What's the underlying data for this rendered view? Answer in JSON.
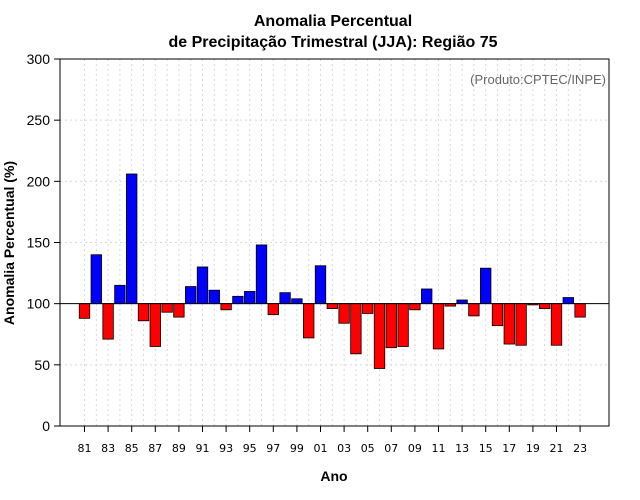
{
  "chart_data": {
    "type": "bar",
    "title_line1": "Anomalia Percentual",
    "title_line2": "de Precipitação Trimestral (JJA): Região 75",
    "xlabel": "Ano",
    "ylabel": "Anomalia Percentual (%)",
    "credit": "(Produto:CPTEC/INPE)",
    "ylim": [
      0,
      300
    ],
    "yticks": [
      "0",
      "50",
      "100",
      "150",
      "200",
      "250",
      "300"
    ],
    "baseline": 100,
    "colors": {
      "above": "#0000ff",
      "below": "#ff0000",
      "border": "#000000",
      "grid": "#d9d9d9"
    },
    "xtick_labels": [
      "81",
      "83",
      "85",
      "87",
      "89",
      "91",
      "93",
      "95",
      "97",
      "99",
      "01",
      "03",
      "05",
      "07",
      "09",
      "11",
      "13",
      "15",
      "17",
      "19",
      "21",
      "23"
    ],
    "categories": [
      "81",
      "82",
      "83",
      "84",
      "85",
      "86",
      "87",
      "88",
      "89",
      "90",
      "91",
      "92",
      "93",
      "94",
      "95",
      "96",
      "97",
      "98",
      "99",
      "00",
      "01",
      "02",
      "03",
      "04",
      "05",
      "06",
      "07",
      "08",
      "09",
      "10",
      "11",
      "12",
      "13",
      "14",
      "15",
      "16",
      "17",
      "18",
      "19",
      "20",
      "21",
      "22",
      "23"
    ],
    "values": [
      88,
      140,
      71,
      115,
      206,
      86,
      65,
      93,
      89,
      114,
      130,
      111,
      95,
      106,
      110,
      148,
      91,
      109,
      104,
      72,
      131,
      96,
      84,
      59,
      92,
      47,
      64,
      65,
      95,
      112,
      63,
      98,
      103,
      90,
      129,
      82,
      67,
      66,
      99,
      96,
      66,
      105,
      89
    ]
  }
}
